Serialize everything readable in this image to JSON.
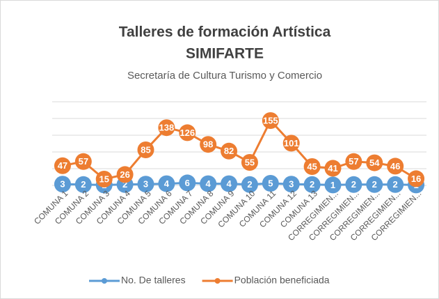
{
  "chart_data": {
    "type": "line",
    "title": "Talleres de formación Artística",
    "title_line2": "SIMIFARTE",
    "subtitle": "Secretaría de Cultura Turismo y Comercio",
    "categories": [
      "COMUNA 1",
      "COMUNA 2",
      "COMUNA 3",
      "COMUNA 4",
      "COMUNA 5",
      "COMUNA 6",
      "COMUNA 7",
      "COMUNA 8",
      "COMUNA 9",
      "COMUNA 10",
      "COMUNA 11",
      "COMUNA 12",
      "COMUNA 13",
      "CORREGIMIEN...",
      "CORREGIMIEN...",
      "CORREGIMIEN...",
      "CORREGIMIEN...",
      "CORREGIMIEN..."
    ],
    "series": [
      {
        "name": "No. De talleres",
        "color": "#5b9bd5",
        "values": [
          3,
          2,
          1,
          2,
          3,
          4,
          6,
          4,
          4,
          2,
          5,
          3,
          2,
          1,
          2,
          2,
          2,
          1
        ]
      },
      {
        "name": "Población beneficiada",
        "color": "#ed7d31",
        "values": [
          47,
          57,
          15,
          26,
          85,
          138,
          126,
          98,
          82,
          55,
          155,
          101,
          45,
          41,
          57,
          54,
          46,
          16
        ]
      }
    ],
    "ylim": [
      0,
      200
    ],
    "yticks": [
      0,
      40,
      80,
      120,
      160,
      200
    ],
    "grid": true,
    "legend": "bottom"
  }
}
